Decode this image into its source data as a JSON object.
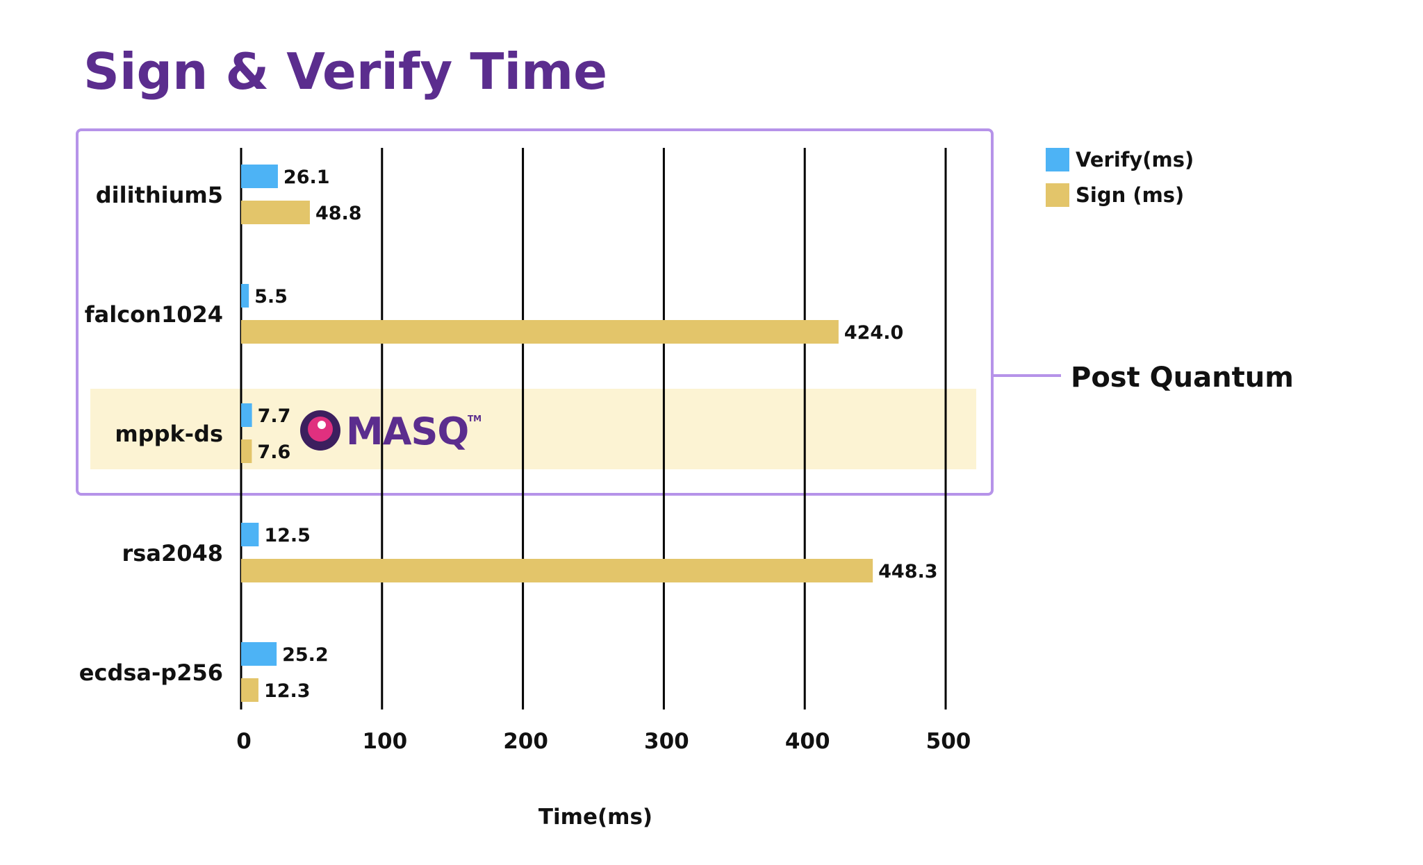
{
  "page": {
    "title": "Sign & Verify Time",
    "group_label": "Post Quantum",
    "logo_text": "MASQ",
    "logo_tm": "TM"
  },
  "colors": {
    "title": "#5b2d8e",
    "verify": "#4db3f5",
    "sign": "#e3c56a",
    "group_border": "#b693e9",
    "highlight": "#fcf3d3",
    "grid": "#000000"
  },
  "chart_data": {
    "type": "bar",
    "orientation": "horizontal",
    "title": "Sign & Verify Time",
    "xlabel": "Time(ms)",
    "ylabel": "",
    "xlim": [
      0,
      500
    ],
    "xticks": [
      0,
      100,
      200,
      300,
      400,
      500
    ],
    "grid": true,
    "legend_position": "top-right",
    "categories": [
      "dilithium5",
      "falcon1024",
      "mppk-ds",
      "rsa2048",
      "ecdsa-p256"
    ],
    "series": [
      {
        "name": "Verify(ms)",
        "values": [
          26.1,
          5.5,
          7.7,
          12.5,
          25.2
        ],
        "labels": [
          "26.1",
          "5.5",
          "7.7",
          "12.5",
          "25.2"
        ]
      },
      {
        "name": "Sign (ms)",
        "values": [
          48.8,
          424.0,
          7.6,
          448.3,
          12.3
        ],
        "labels": [
          "48.8",
          "424.0",
          "7.6",
          "448.3",
          "12.3"
        ]
      }
    ],
    "group": {
      "label": "Post Quantum",
      "categories": [
        "dilithium5",
        "falcon1024",
        "mppk-ds"
      ]
    },
    "highlight_category": "mppk-ds"
  }
}
